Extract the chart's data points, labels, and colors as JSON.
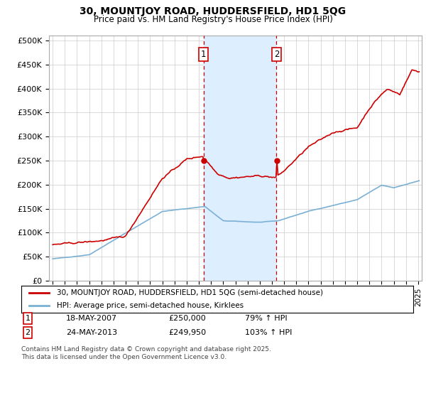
{
  "title": "30, MOUNTJOY ROAD, HUDDERSFIELD, HD1 5QG",
  "subtitle": "Price paid vs. HM Land Registry's House Price Index (HPI)",
  "ylabel_ticks": [
    "£0",
    "£50K",
    "£100K",
    "£150K",
    "£200K",
    "£250K",
    "£300K",
    "£350K",
    "£400K",
    "£450K",
    "£500K"
  ],
  "ytick_values": [
    0,
    50000,
    100000,
    150000,
    200000,
    250000,
    300000,
    350000,
    400000,
    450000,
    500000
  ],
  "ylim": [
    0,
    510000
  ],
  "xlim_start": 1994.7,
  "xlim_end": 2025.3,
  "sale1_x": 2007.38,
  "sale1_y": 250000,
  "sale2_x": 2013.38,
  "sale2_y": 249950,
  "legend_house": "30, MOUNTJOY ROAD, HUDDERSFIELD, HD1 5QG (semi-detached house)",
  "legend_hpi": "HPI: Average price, semi-detached house, Kirklees",
  "footnote": "Contains HM Land Registry data © Crown copyright and database right 2025.\nThis data is licensed under the Open Government Licence v3.0.",
  "house_color": "#cc0000",
  "hpi_color": "#7ab0d4",
  "shade_color": "#ddeeff",
  "dashed_color": "#cc0000",
  "background_color": "#ffffff",
  "grid_color": "#cccccc"
}
